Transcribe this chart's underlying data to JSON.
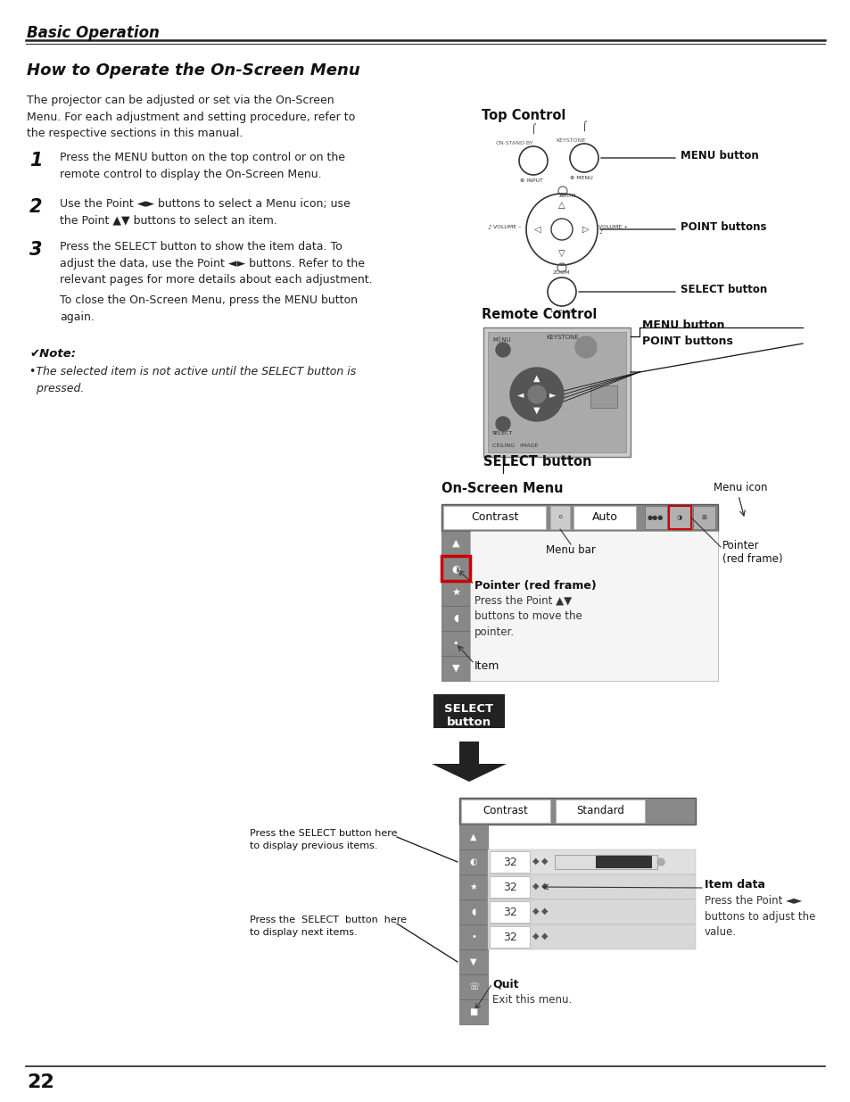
{
  "page_title": "Basic Operation",
  "section_title": "How to Operate the On-Screen Menu",
  "intro_text": "The projector can be adjusted or set via the On-Screen\nMenu. For each adjustment and setting procedure, refer to\nthe respective sections in this manual.",
  "steps": [
    {
      "num": "1",
      "text": "Press the MENU button on the top control or on the\nremote control to display the On-Screen Menu."
    },
    {
      "num": "2",
      "text": "Use the Point ◄► buttons to select a Menu icon; use\nthe Point ▲▼ buttons to select an item."
    },
    {
      "num": "3",
      "text": "Press the SELECT button to show the item data. To\nadjust the data, use the Point ◄► buttons. Refer to the\nrelevant pages for more details about each adjustment."
    }
  ],
  "close_text": "To close the On-Screen Menu, press the MENU button\nagain.",
  "note_title": "✔Note:",
  "note_text": "•The selected item is not active until the SELECT button is\n  pressed.",
  "top_control_label": "Top Control",
  "menu_btn_label": "MENU button",
  "point_btn_label": "POINT buttons",
  "select_btn_label": "SELECT button",
  "remote_label": "Remote Control",
  "remote_menu_label": "MENU button",
  "remote_point_label": "POINT buttons",
  "remote_select_label": "SELECT button",
  "onscreen_label": "On-Screen Menu",
  "menu_icon_label": "Menu icon",
  "menu_bar_label": "Menu bar",
  "pointer_red_label": "Pointer\n(red frame)",
  "pointer_frame_label": "Pointer (red frame)",
  "pointer_move_text": "Press the Point ▲▼\nbuttons to move the\npointer.",
  "item_label": "Item",
  "select_btn_box": "SELECT\nbutton",
  "press_select_prev": "Press the SELECT button here\nto display previous items.",
  "press_select_next": "Press the  SELECT  button  here\nto display next items.",
  "item_data_label": "Item data",
  "item_data_text": "Press the Point ◄►\nbuttons to adjust the\nvalue.",
  "quit_label": "Quit",
  "quit_text": "Exit this menu.",
  "page_number": "22",
  "bg_color": "#ffffff",
  "text_color": "#1a1a1a",
  "header_line_color": "#111111",
  "red_color": "#cc0000",
  "select_btn_color": "#222222"
}
